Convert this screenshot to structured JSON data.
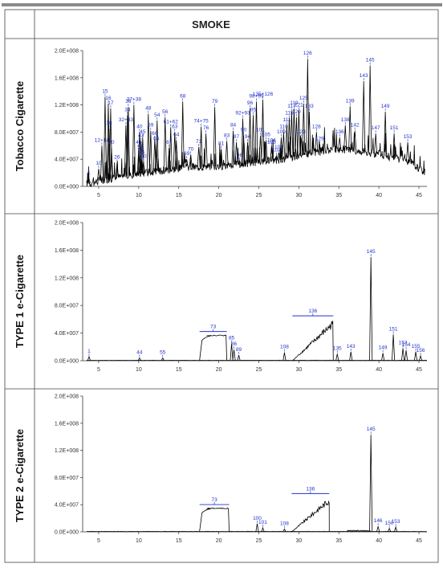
{
  "header": {
    "title": "SMOKE"
  },
  "colors": {
    "trace": "#000000",
    "peak_label": "#2233cc",
    "frame": "#444444",
    "top_bar": "#8a8a8a"
  },
  "chart_data": [
    {
      "type": "line",
      "row_label": "Tobacco Cigarette",
      "xlim": [
        3,
        46
      ],
      "ylim": [
        0,
        200000000
      ],
      "x_ticks": [
        "5",
        "10",
        "15",
        "20",
        "25",
        "30",
        "35",
        "40",
        "45"
      ],
      "y_ticks": [
        "0.0E+000",
        "4.0E+007",
        "8.0E+007",
        "1.2E+008",
        "1.6E+008",
        "2.0E+008"
      ],
      "baseline": [
        [
          3.5,
          4000000
        ],
        [
          5,
          8000000
        ],
        [
          8,
          15000000
        ],
        [
          12,
          22000000
        ],
        [
          16,
          28000000
        ],
        [
          20,
          30000000
        ],
        [
          24,
          34000000
        ],
        [
          28,
          40000000
        ],
        [
          32,
          50000000
        ],
        [
          35,
          55000000
        ],
        [
          38,
          52000000
        ],
        [
          41,
          45000000
        ],
        [
          44,
          35000000
        ],
        [
          45.8,
          20000000
        ]
      ],
      "peaks": [
        {
          "label": "1",
          "x": 3.8,
          "y": 11000000
        },
        {
          "label": "10",
          "x": 5.0,
          "y": 26000000
        },
        {
          "label": "12+14",
          "x": 5.4,
          "y": 60000000
        },
        {
          "label": "15",
          "x": 5.8,
          "y": 132000000
        },
        {
          "label": "16",
          "x": 6.2,
          "y": 122000000
        },
        {
          "label": "17",
          "x": 6.5,
          "y": 115000000
        },
        {
          "label": "18",
          "x": 6.3,
          "y": 85000000
        },
        {
          "label": "20",
          "x": 6.6,
          "y": 57000000
        },
        {
          "label": "26",
          "x": 7.3,
          "y": 35000000
        },
        {
          "label": "32+33",
          "x": 8.4,
          "y": 90000000
        },
        {
          "label": "34",
          "x": 8.6,
          "y": 105000000
        },
        {
          "label": "36",
          "x": 8.7,
          "y": 117000000
        },
        {
          "label": "37+38",
          "x": 9.4,
          "y": 120000000
        },
        {
          "label": "40",
          "x": 10.1,
          "y": 80000000
        },
        {
          "label": "43",
          "x": 10.3,
          "y": 67000000
        },
        {
          "label": "45",
          "x": 10.5,
          "y": 72000000
        },
        {
          "label": "48",
          "x": 11.2,
          "y": 107000000
        },
        {
          "label": "41",
          "x": 10.0,
          "y": 57000000
        },
        {
          "label": "53",
          "x": 10.2,
          "y": 50000000
        },
        {
          "label": "55",
          "x": 10.4,
          "y": 42000000
        },
        {
          "label": "60",
          "x": 10.6,
          "y": 36000000
        },
        {
          "label": "59",
          "x": 11.5,
          "y": 82000000
        },
        {
          "label": "54",
          "x": 12.3,
          "y": 97000000
        },
        {
          "label": "56",
          "x": 13.3,
          "y": 102000000
        },
        {
          "label": "61+62",
          "x": 14.0,
          "y": 87000000
        },
        {
          "label": "63",
          "x": 14.5,
          "y": 80000000
        },
        {
          "label": "64",
          "x": 14.7,
          "y": 68000000
        },
        {
          "label": "66",
          "x": 12.0,
          "y": 70000000
        },
        {
          "label": "65",
          "x": 12.2,
          "y": 62000000
        },
        {
          "label": "67",
          "x": 13.8,
          "y": 57000000
        },
        {
          "label": "68",
          "x": 15.5,
          "y": 125000000
        },
        {
          "label": "69",
          "x": 16.0,
          "y": 40000000
        },
        {
          "label": "70",
          "x": 16.5,
          "y": 47000000
        },
        {
          "label": "71",
          "x": 17.5,
          "y": 58000000
        },
        {
          "label": "74+75",
          "x": 17.8,
          "y": 88000000
        },
        {
          "label": "76",
          "x": 18.4,
          "y": 78000000
        },
        {
          "label": "79",
          "x": 19.5,
          "y": 117000000
        },
        {
          "label": "81",
          "x": 20.3,
          "y": 55000000
        },
        {
          "label": "83",
          "x": 21.0,
          "y": 67000000
        },
        {
          "label": "84",
          "x": 21.8,
          "y": 82000000
        },
        {
          "label": "87",
          "x": 22.2,
          "y": 65000000
        },
        {
          "label": "86",
          "x": 22.6,
          "y": 38000000
        },
        {
          "label": "92+93",
          "x": 23.0,
          "y": 100000000
        },
        {
          "label": "90",
          "x": 23.1,
          "y": 75000000
        },
        {
          "label": "94",
          "x": 23.6,
          "y": 65000000
        },
        {
          "label": "96",
          "x": 23.9,
          "y": 115000000
        },
        {
          "label": "95",
          "x": 24.3,
          "y": 105000000
        },
        {
          "label": "98+99",
          "x": 24.7,
          "y": 125000000
        },
        {
          "label": "101",
          "x": 25.2,
          "y": 75000000
        },
        {
          "label": "105",
          "x": 25.9,
          "y": 68000000
        },
        {
          "label": "104",
          "x": 26.6,
          "y": 60000000
        },
        {
          "label": "103",
          "x": 26.6,
          "y": 57000000
        },
        {
          "label": "107",
          "x": 27.2,
          "y": 45000000
        },
        {
          "label": "108",
          "x": 27.5,
          "y": 50000000
        },
        {
          "label": "109",
          "x": 27.8,
          "y": 72000000
        },
        {
          "label": "110",
          "x": 28.1,
          "y": 80000000
        },
        {
          "label": "111",
          "x": 28.5,
          "y": 90000000
        },
        {
          "label": "115",
          "x": 28.8,
          "y": 100000000
        },
        {
          "label": "117",
          "x": 29.1,
          "y": 110000000
        },
        {
          "label": "119",
          "x": 29.4,
          "y": 115000000
        },
        {
          "label": "120",
          "x": 29.7,
          "y": 102000000
        },
        {
          "label": "121",
          "x": 30.0,
          "y": 112000000
        },
        {
          "label": "123",
          "x": 30.3,
          "y": 72000000
        },
        {
          "label": "125",
          "x": 30.6,
          "y": 122000000
        },
        {
          "label": "135+126",
          "x": 25.5,
          "y": 128000000
        },
        {
          "label": "126",
          "x": 31.1,
          "y": 188000000
        },
        {
          "label": "128",
          "x": 32.2,
          "y": 80000000
        },
        {
          "label": "129",
          "x": 32.6,
          "y": 62000000
        },
        {
          "label": "133",
          "x": 31.3,
          "y": 110000000
        },
        {
          "label": "136",
          "x": 35.1,
          "y": 72000000
        },
        {
          "label": "138",
          "x": 35.8,
          "y": 90000000
        },
        {
          "label": "139",
          "x": 36.4,
          "y": 118000000
        },
        {
          "label": "142",
          "x": 37.0,
          "y": 82000000
        },
        {
          "label": "143",
          "x": 38.1,
          "y": 155000000
        },
        {
          "label": "145",
          "x": 38.9,
          "y": 178000000
        },
        {
          "label": "147",
          "x": 39.6,
          "y": 78000000
        },
        {
          "label": "149",
          "x": 40.8,
          "y": 110000000
        },
        {
          "label": "151",
          "x": 41.9,
          "y": 78000000
        },
        {
          "label": "153",
          "x": 43.6,
          "y": 65000000
        }
      ],
      "segments": [],
      "flags": []
    },
    {
      "type": "line",
      "row_label": "TYPE 1 e-Cigarette",
      "xlim": [
        3,
        46
      ],
      "ylim": [
        0,
        200000000
      ],
      "x_ticks": [
        "5",
        "10",
        "15",
        "20",
        "25",
        "30",
        "35",
        "40",
        "45"
      ],
      "y_ticks": [
        "0.0E+000",
        "4.0E+007",
        "8.0E+007",
        "1.2E+008",
        "1.6E+008",
        "2.0E+008"
      ],
      "baseline": [
        [
          3.5,
          500000
        ],
        [
          46,
          500000
        ]
      ],
      "peaks": [
        {
          "label": "1",
          "x": 3.8,
          "y": 6000000
        },
        {
          "label": "44",
          "x": 10.1,
          "y": 4000000
        },
        {
          "label": "55",
          "x": 13.0,
          "y": 4000000
        },
        {
          "label": "85",
          "x": 21.6,
          "y": 25000000
        },
        {
          "label": "86",
          "x": 21.9,
          "y": 16000000
        },
        {
          "label": "89",
          "x": 22.5,
          "y": 8000000
        },
        {
          "label": "108",
          "x": 28.2,
          "y": 12000000
        },
        {
          "label": "135",
          "x": 34.8,
          "y": 10000000
        },
        {
          "label": "143",
          "x": 36.5,
          "y": 13000000
        },
        {
          "label": "145",
          "x": 39.0,
          "y": 150000000
        },
        {
          "label": "149",
          "x": 40.5,
          "y": 11000000
        },
        {
          "label": "151",
          "x": 41.8,
          "y": 38000000
        },
        {
          "label": "153",
          "x": 43.0,
          "y": 18000000
        },
        {
          "label": "154",
          "x": 43.4,
          "y": 15000000
        },
        {
          "label": "155",
          "x": 44.6,
          "y": 13000000
        },
        {
          "label": "156",
          "x": 45.2,
          "y": 7000000
        }
      ],
      "segments": [
        {
          "label": "73",
          "x_start": 17.6,
          "x_end": 21.0,
          "kind": "plateau",
          "level": 37000000
        },
        {
          "label": "136",
          "x_start": 29.2,
          "x_end": 34.3,
          "kind": "ramp",
          "level": 58000000
        }
      ],
      "flags": []
    },
    {
      "type": "line",
      "row_label": "TYPE 2 e-Cigarette",
      "xlim": [
        3,
        46
      ],
      "ylim": [
        0,
        200000000
      ],
      "x_ticks": [
        "5",
        "10",
        "15",
        "20",
        "25",
        "30",
        "35",
        "40",
        "45"
      ],
      "y_ticks": [
        "0.0E+000",
        "4.0E+007",
        "8.0E+007",
        "1.2E+008",
        "1.6E+008",
        "2.0E+008"
      ],
      "baseline": [
        [
          3.5,
          500000
        ],
        [
          46,
          500000
        ]
      ],
      "peaks": [
        {
          "label": "100",
          "x": 24.8,
          "y": 12000000
        },
        {
          "label": "101",
          "x": 25.5,
          "y": 6000000
        },
        {
          "label": "108",
          "x": 28.2,
          "y": 4000000
        },
        {
          "label": "145",
          "x": 39.0,
          "y": 143000000
        },
        {
          "label": "146",
          "x": 39.9,
          "y": 8000000
        },
        {
          "label": "150",
          "x": 41.3,
          "y": 5000000
        },
        {
          "label": "153",
          "x": 42.1,
          "y": 7000000
        }
      ],
      "segments": [
        {
          "label": "73",
          "x_start": 17.6,
          "x_end": 21.3,
          "kind": "plateau",
          "level": 35000000
        },
        {
          "label": "136",
          "x_start": 29.1,
          "x_end": 33.8,
          "kind": "ramp",
          "level": 50000000
        }
      ],
      "flags": [
        {
          "x": 36.0,
          "x_end": 39.0,
          "level": 1500000
        }
      ]
    }
  ]
}
